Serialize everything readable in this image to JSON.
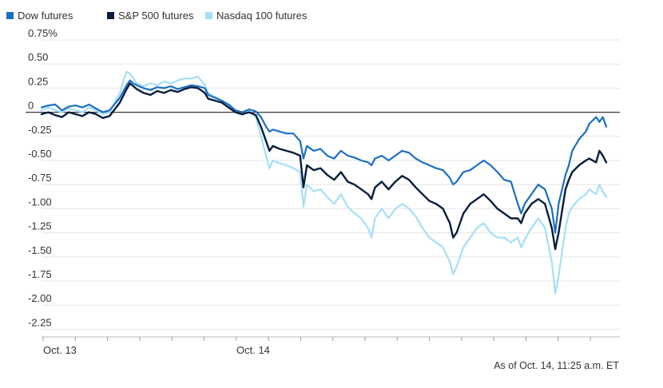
{
  "colors": {
    "dow": "#1a6fc0",
    "sp500": "#071d3c",
    "nasdaq": "#a5dff7",
    "text": "#333333",
    "grid": "#e6e6e6",
    "zero": "#3a3a3a"
  },
  "chart_data": {
    "type": "line",
    "title": "",
    "xlabel": "",
    "ylabel": "",
    "ylim": [
      -2.3,
      0.8
    ],
    "yticks": [
      0.75,
      0.5,
      0.25,
      0,
      -0.25,
      -0.5,
      -0.75,
      -1.0,
      -1.25,
      -1.5,
      -1.75,
      -2.0,
      -2.25
    ],
    "ytick_labels": [
      "0.75%",
      "0.50",
      "0.25",
      "0",
      "-0.25",
      "-0.50",
      "-0.75",
      "-1.00",
      "-1.25",
      "-1.50",
      "-1.75",
      "-2.00",
      "-2.25"
    ],
    "x_tick_labels": [
      "Oct. 13",
      "Oct. 14"
    ],
    "grid": true,
    "legend_position": "top-left",
    "note": "As of Oct. 14, 11:25 a.m. ET",
    "series": [
      {
        "name": "Dow futures",
        "color_key": "dow",
        "points": [
          [
            0,
            0.05
          ],
          [
            2,
            0.07
          ],
          [
            4,
            0.08
          ],
          [
            6,
            0.02
          ],
          [
            8,
            0.06
          ],
          [
            10,
            0.07
          ],
          [
            12,
            0.05
          ],
          [
            14,
            0.08
          ],
          [
            16,
            0.04
          ],
          [
            18,
            0.0
          ],
          [
            20,
            0.02
          ],
          [
            23,
            0.15
          ],
          [
            25,
            0.28
          ],
          [
            26,
            0.33
          ],
          [
            27,
            0.3
          ],
          [
            28,
            0.28
          ],
          [
            30,
            0.25
          ],
          [
            32,
            0.23
          ],
          [
            34,
            0.26
          ],
          [
            36,
            0.25
          ],
          [
            38,
            0.27
          ],
          [
            40,
            0.24
          ],
          [
            42,
            0.26
          ],
          [
            44,
            0.28
          ],
          [
            46,
            0.27
          ],
          [
            48,
            0.25
          ],
          [
            49,
            0.18
          ],
          [
            51,
            0.15
          ],
          [
            53,
            0.12
          ],
          [
            55,
            0.08
          ],
          [
            57,
            0.02
          ],
          [
            59,
            0.0
          ],
          [
            61,
            0.03
          ],
          [
            63,
            0.01
          ],
          [
            64.5,
            -0.05
          ],
          [
            66,
            -0.15
          ],
          [
            67,
            -0.2
          ],
          [
            68,
            -0.18
          ],
          [
            70,
            -0.2
          ],
          [
            72,
            -0.22
          ],
          [
            74,
            -0.22
          ],
          [
            76,
            -0.3
          ],
          [
            77,
            -0.48
          ],
          [
            78,
            -0.35
          ],
          [
            80,
            -0.4
          ],
          [
            82,
            -0.38
          ],
          [
            84,
            -0.45
          ],
          [
            86,
            -0.48
          ],
          [
            88,
            -0.4
          ],
          [
            90,
            -0.45
          ],
          [
            92,
            -0.47
          ],
          [
            94,
            -0.5
          ],
          [
            96,
            -0.52
          ],
          [
            97,
            -0.55
          ],
          [
            98,
            -0.48
          ],
          [
            100,
            -0.45
          ],
          [
            102,
            -0.5
          ],
          [
            104,
            -0.45
          ],
          [
            106,
            -0.4
          ],
          [
            108,
            -0.42
          ],
          [
            110,
            -0.48
          ],
          [
            112,
            -0.52
          ],
          [
            114,
            -0.55
          ],
          [
            116,
            -0.58
          ],
          [
            118,
            -0.6
          ],
          [
            120,
            -0.68
          ],
          [
            121,
            -0.75
          ],
          [
            122,
            -0.72
          ],
          [
            124,
            -0.62
          ],
          [
            126,
            -0.6
          ],
          [
            128,
            -0.55
          ],
          [
            130,
            -0.5
          ],
          [
            132,
            -0.55
          ],
          [
            134,
            -0.62
          ],
          [
            136,
            -0.7
          ],
          [
            138,
            -0.72
          ],
          [
            140,
            -0.95
          ],
          [
            141,
            -1.05
          ],
          [
            142,
            -0.95
          ],
          [
            144,
            -0.85
          ],
          [
            146,
            -0.75
          ],
          [
            148,
            -0.8
          ],
          [
            150,
            -1.0
          ],
          [
            151,
            -1.25
          ],
          [
            152,
            -0.95
          ],
          [
            154,
            -0.65
          ],
          [
            155,
            -0.55
          ],
          [
            156,
            -0.4
          ],
          [
            158,
            -0.28
          ],
          [
            160,
            -0.2
          ],
          [
            161,
            -0.12
          ],
          [
            163,
            -0.05
          ],
          [
            164,
            -0.1
          ],
          [
            165,
            -0.05
          ],
          [
            166,
            -0.15
          ]
        ]
      },
      {
        "name": "S&P 500 futures",
        "color_key": "sp500",
        "points": [
          [
            0,
            -0.02
          ],
          [
            2,
            0.0
          ],
          [
            4,
            -0.03
          ],
          [
            6,
            -0.05
          ],
          [
            8,
            0.0
          ],
          [
            10,
            -0.02
          ],
          [
            12,
            -0.04
          ],
          [
            14,
            0.0
          ],
          [
            16,
            -0.02
          ],
          [
            18,
            -0.06
          ],
          [
            20,
            -0.04
          ],
          [
            23,
            0.1
          ],
          [
            25,
            0.24
          ],
          [
            26,
            0.3
          ],
          [
            27,
            0.27
          ],
          [
            28,
            0.24
          ],
          [
            30,
            0.2
          ],
          [
            32,
            0.18
          ],
          [
            34,
            0.22
          ],
          [
            36,
            0.2
          ],
          [
            38,
            0.23
          ],
          [
            40,
            0.21
          ],
          [
            42,
            0.24
          ],
          [
            44,
            0.26
          ],
          [
            46,
            0.25
          ],
          [
            48,
            0.2
          ],
          [
            49,
            0.14
          ],
          [
            51,
            0.12
          ],
          [
            53,
            0.1
          ],
          [
            55,
            0.05
          ],
          [
            57,
            0.0
          ],
          [
            59,
            -0.02
          ],
          [
            61,
            0.0
          ],
          [
            63,
            -0.03
          ],
          [
            64.5,
            -0.15
          ],
          [
            66,
            -0.3
          ],
          [
            67,
            -0.4
          ],
          [
            68,
            -0.35
          ],
          [
            70,
            -0.38
          ],
          [
            72,
            -0.4
          ],
          [
            74,
            -0.42
          ],
          [
            76,
            -0.45
          ],
          [
            77,
            -0.78
          ],
          [
            78,
            -0.55
          ],
          [
            80,
            -0.6
          ],
          [
            82,
            -0.58
          ],
          [
            84,
            -0.65
          ],
          [
            86,
            -0.7
          ],
          [
            88,
            -0.62
          ],
          [
            90,
            -0.72
          ],
          [
            92,
            -0.75
          ],
          [
            94,
            -0.8
          ],
          [
            96,
            -0.85
          ],
          [
            97,
            -0.9
          ],
          [
            98,
            -0.78
          ],
          [
            100,
            -0.72
          ],
          [
            102,
            -0.8
          ],
          [
            104,
            -0.72
          ],
          [
            106,
            -0.66
          ],
          [
            108,
            -0.7
          ],
          [
            110,
            -0.78
          ],
          [
            112,
            -0.85
          ],
          [
            114,
            -0.92
          ],
          [
            116,
            -0.95
          ],
          [
            118,
            -1.0
          ],
          [
            120,
            -1.15
          ],
          [
            121,
            -1.3
          ],
          [
            122,
            -1.25
          ],
          [
            124,
            -1.05
          ],
          [
            126,
            -0.95
          ],
          [
            128,
            -0.9
          ],
          [
            130,
            -0.85
          ],
          [
            132,
            -0.92
          ],
          [
            134,
            -1.0
          ],
          [
            136,
            -1.05
          ],
          [
            138,
            -1.1
          ],
          [
            140,
            -1.1
          ],
          [
            141,
            -1.15
          ],
          [
            142,
            -1.05
          ],
          [
            144,
            -0.95
          ],
          [
            146,
            -0.9
          ],
          [
            148,
            -0.95
          ],
          [
            150,
            -1.2
          ],
          [
            151,
            -1.42
          ],
          [
            152,
            -1.25
          ],
          [
            154,
            -0.8
          ],
          [
            155,
            -0.7
          ],
          [
            156,
            -0.62
          ],
          [
            158,
            -0.55
          ],
          [
            160,
            -0.5
          ],
          [
            161,
            -0.48
          ],
          [
            163,
            -0.52
          ],
          [
            164,
            -0.4
          ],
          [
            165,
            -0.45
          ],
          [
            166,
            -0.52
          ]
        ]
      },
      {
        "name": "Nasdaq 100 futures",
        "color_key": "nasdaq",
        "points": [
          [
            0,
            0.02
          ],
          [
            2,
            0.05
          ],
          [
            4,
            0.02
          ],
          [
            6,
            0.0
          ],
          [
            8,
            0.04
          ],
          [
            10,
            0.02
          ],
          [
            12,
            0.0
          ],
          [
            14,
            0.05
          ],
          [
            16,
            0.02
          ],
          [
            18,
            -0.02
          ],
          [
            20,
            0.0
          ],
          [
            23,
            0.2
          ],
          [
            24,
            0.32
          ],
          [
            25,
            0.42
          ],
          [
            26,
            0.4
          ],
          [
            27,
            0.35
          ],
          [
            28,
            0.3
          ],
          [
            30,
            0.27
          ],
          [
            32,
            0.3
          ],
          [
            34,
            0.28
          ],
          [
            36,
            0.32
          ],
          [
            38,
            0.3
          ],
          [
            40,
            0.33
          ],
          [
            42,
            0.35
          ],
          [
            44,
            0.35
          ],
          [
            46,
            0.37
          ],
          [
            48,
            0.28
          ],
          [
            49,
            0.2
          ],
          [
            51,
            0.16
          ],
          [
            53,
            0.12
          ],
          [
            55,
            0.06
          ],
          [
            57,
            0.0
          ],
          [
            59,
            -0.03
          ],
          [
            61,
            0.02
          ],
          [
            63,
            -0.05
          ],
          [
            64.5,
            -0.25
          ],
          [
            66,
            -0.45
          ],
          [
            67,
            -0.58
          ],
          [
            68,
            -0.5
          ],
          [
            70,
            -0.53
          ],
          [
            72,
            -0.55
          ],
          [
            74,
            -0.58
          ],
          [
            76,
            -0.62
          ],
          [
            77,
            -0.98
          ],
          [
            78,
            -0.75
          ],
          [
            80,
            -0.82
          ],
          [
            82,
            -0.8
          ],
          [
            84,
            -0.88
          ],
          [
            86,
            -0.95
          ],
          [
            88,
            -0.85
          ],
          [
            90,
            -0.98
          ],
          [
            92,
            -1.05
          ],
          [
            94,
            -1.1
          ],
          [
            96,
            -1.2
          ],
          [
            97,
            -1.3
          ],
          [
            98,
            -1.1
          ],
          [
            100,
            -1.0
          ],
          [
            102,
            -1.1
          ],
          [
            104,
            -1.0
          ],
          [
            106,
            -0.95
          ],
          [
            108,
            -1.0
          ],
          [
            110,
            -1.08
          ],
          [
            112,
            -1.2
          ],
          [
            114,
            -1.3
          ],
          [
            116,
            -1.35
          ],
          [
            118,
            -1.4
          ],
          [
            120,
            -1.55
          ],
          [
            121,
            -1.68
          ],
          [
            122,
            -1.6
          ],
          [
            124,
            -1.4
          ],
          [
            126,
            -1.3
          ],
          [
            128,
            -1.2
          ],
          [
            130,
            -1.15
          ],
          [
            132,
            -1.25
          ],
          [
            134,
            -1.3
          ],
          [
            136,
            -1.3
          ],
          [
            138,
            -1.35
          ],
          [
            140,
            -1.3
          ],
          [
            141,
            -1.4
          ],
          [
            142,
            -1.32
          ],
          [
            144,
            -1.2
          ],
          [
            146,
            -1.1
          ],
          [
            148,
            -1.2
          ],
          [
            150,
            -1.55
          ],
          [
            151,
            -1.88
          ],
          [
            152,
            -1.7
          ],
          [
            154,
            -1.2
          ],
          [
            155,
            -1.05
          ],
          [
            156,
            -0.98
          ],
          [
            158,
            -0.9
          ],
          [
            160,
            -0.85
          ],
          [
            161,
            -0.8
          ],
          [
            163,
            -0.85
          ],
          [
            164,
            -0.75
          ],
          [
            165,
            -0.82
          ],
          [
            166,
            -0.88
          ]
        ]
      }
    ]
  }
}
